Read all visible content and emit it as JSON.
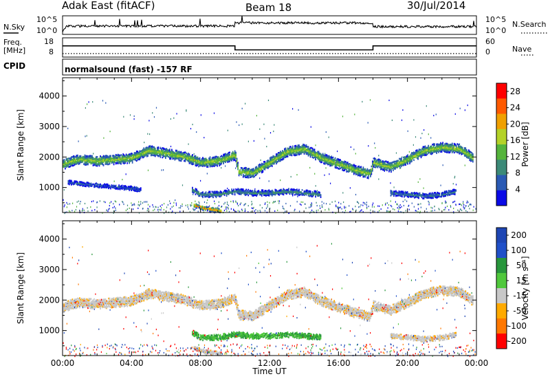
{
  "header": {
    "station": "Adak East (fitACF)",
    "beam": "Beam 18",
    "date": "30/Jul/2014"
  },
  "cpid_label": "CPID",
  "cpid_text": "normalsound (fast) -157 RF",
  "colors": {
    "line": "#000000",
    "ground_scatter": "#bebebe"
  },
  "chart_data": [
    {
      "type": "line",
      "panel": "noise",
      "left_label": "N.Sky",
      "right_label": "N.Search",
      "left_ticks": [
        "10^5",
        "10^0"
      ],
      "right_ticks": [
        "10^5",
        "10^0"
      ],
      "xlim_hours": [
        0,
        24
      ],
      "series": [
        {
          "name": "N.Sky",
          "style": "solid",
          "level": [
            [
              0,
              0.1
            ],
            [
              0.2,
              0.45
            ],
            [
              10,
              0.45
            ],
            [
              10,
              0.62
            ],
            [
              18,
              0.62
            ],
            [
              18,
              0.42
            ],
            [
              24,
              0.42
            ]
          ]
        },
        {
          "name": "N.Search",
          "style": "dotted",
          "level": []
        }
      ]
    },
    {
      "type": "line",
      "panel": "frequency",
      "left_label": "Freq.",
      "left_unit": "[MHz]",
      "right_label": "Nave",
      "left_ticks": [
        "18",
        "8"
      ],
      "right_ticks": [
        "60",
        "0"
      ],
      "xlim_hours": [
        0,
        24
      ],
      "series": [
        {
          "name": "Freq.",
          "style": "solid",
          "step": [
            [
              0,
              13
            ],
            [
              10,
              13
            ],
            [
              10,
              10.5
            ],
            [
              18,
              10.5
            ],
            [
              18,
              13
            ],
            [
              24,
              13
            ]
          ],
          "ylim": [
            6,
            18
          ]
        },
        {
          "name": "Nave",
          "style": "dotted",
          "step": [
            [
              0,
              11
            ],
            [
              24,
              11
            ]
          ],
          "ylim": [
            0,
            60
          ]
        }
      ]
    },
    {
      "type": "heatmap",
      "panel": "power",
      "ylabel": "Slant Range [km]",
      "yticks": [
        1000,
        2000,
        3000,
        4000
      ],
      "ylim": [
        180,
        4600
      ],
      "xlim_hours": [
        0,
        24
      ],
      "colorbar": {
        "label": "Power [dB]",
        "ticks": [
          4,
          8,
          12,
          16,
          20,
          24,
          28
        ],
        "range": [
          0,
          30
        ],
        "colors": [
          "#0a0ae6",
          "#2a5ab4",
          "#3c8a78",
          "#55b43c",
          "#b4d228",
          "#f0a000",
          "#ff5a00",
          "#ff0000"
        ]
      },
      "bands": [
        {
          "t": [
            0,
            0.5,
            1,
            2,
            3,
            4,
            5,
            6,
            7,
            8,
            9,
            10,
            10.2,
            11,
            12,
            13,
            14,
            15,
            16,
            17,
            17.8,
            18,
            19,
            20,
            21,
            22,
            23,
            23.8
          ],
          "r": [
            1780,
            1900,
            1950,
            1900,
            1950,
            2000,
            2250,
            2150,
            2050,
            1850,
            1900,
            2100,
            1550,
            1500,
            1850,
            2200,
            2300,
            2000,
            1800,
            1600,
            1480,
            1850,
            1700,
            1950,
            2250,
            2350,
            2300,
            2000
          ],
          "w": 320,
          "core": 16
        },
        {
          "t": [
            0.3,
            1,
            2,
            3,
            4,
            4.5
          ],
          "r": [
            1200,
            1150,
            1100,
            1050,
            1000,
            950
          ],
          "w": 130,
          "core": 6
        },
        {
          "t": [
            7.5,
            8,
            9,
            10,
            11,
            12,
            13,
            14,
            15
          ],
          "r": [
            950,
            800,
            800,
            900,
            850,
            850,
            900,
            850,
            800
          ],
          "w": 180,
          "core": 10
        },
        {
          "t": [
            7.6,
            8.2,
            8.8,
            9.2
          ],
          "r": [
            450,
            350,
            300,
            250
          ],
          "w": 140,
          "core": 24
        },
        {
          "t": [
            19,
            20,
            21,
            22,
            22.8
          ],
          "r": [
            850,
            800,
            750,
            800,
            900
          ],
          "w": 170,
          "core": 8
        }
      ]
    },
    {
      "type": "heatmap",
      "panel": "velocity",
      "xlabel": "Time UT",
      "ylabel": "Slant Range [km]",
      "yticks": [
        1000,
        2000,
        3000,
        4000
      ],
      "ylim": [
        180,
        4600
      ],
      "xlim_hours": [
        0,
        24
      ],
      "xticks": [
        "00:00",
        "04:00",
        "08:00",
        "12:00",
        "16:00",
        "20:00",
        "00:00"
      ],
      "colorbar": {
        "label": "Velocity [m s⁻¹]",
        "ticks": [
          200,
          100,
          50,
          15,
          -15,
          -50,
          -100,
          -200
        ],
        "colors": [
          "#1e46b4",
          "#2050c8",
          "#28963c",
          "#50c83c",
          "#c8c8c8",
          "#ffaa00",
          "#ff7800",
          "#ff0000"
        ]
      },
      "bands": [
        {
          "t": [
            0,
            0.5,
            1,
            2,
            3,
            4,
            5,
            6,
            7,
            8,
            9,
            10,
            10.2,
            11,
            12,
            13,
            14,
            15,
            16,
            17,
            17.8,
            18,
            19,
            20,
            21,
            22,
            23,
            23.8
          ],
          "r": [
            1780,
            1900,
            1950,
            1900,
            1950,
            2000,
            2250,
            2150,
            2050,
            1850,
            1900,
            2100,
            1550,
            1500,
            1850,
            2200,
            2300,
            2000,
            1800,
            1600,
            1480,
            1850,
            1700,
            1950,
            2250,
            2350,
            2300,
            2000
          ],
          "w": 320,
          "v": -5
        },
        {
          "t": [
            7.5,
            8,
            9,
            10,
            11,
            12,
            13,
            14,
            15
          ],
          "r": [
            950,
            800,
            800,
            900,
            850,
            850,
            900,
            850,
            800
          ],
          "w": 180,
          "v": 30
        },
        {
          "t": [
            7.6,
            8.2,
            8.8,
            9.2
          ],
          "r": [
            450,
            350,
            300,
            250
          ],
          "w": 140,
          "v": -5
        },
        {
          "t": [
            19,
            20,
            21,
            22,
            22.8
          ],
          "r": [
            850,
            800,
            750,
            800,
            900
          ],
          "w": 170,
          "v": -5
        }
      ]
    }
  ]
}
